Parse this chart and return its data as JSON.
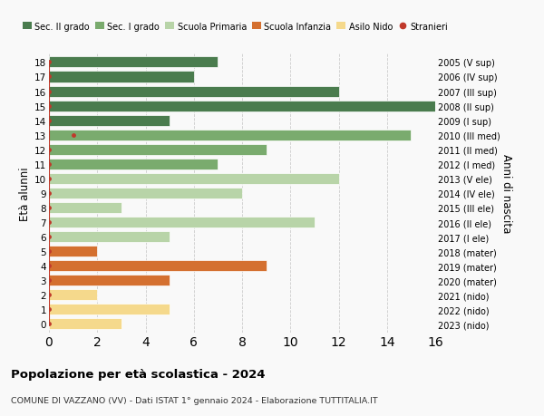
{
  "ages": [
    18,
    17,
    16,
    15,
    14,
    13,
    12,
    11,
    10,
    9,
    8,
    7,
    6,
    5,
    4,
    3,
    2,
    1,
    0
  ],
  "years": [
    "2005 (V sup)",
    "2006 (IV sup)",
    "2007 (III sup)",
    "2008 (II sup)",
    "2009 (I sup)",
    "2010 (III med)",
    "2011 (II med)",
    "2012 (I med)",
    "2013 (V ele)",
    "2014 (IV ele)",
    "2015 (III ele)",
    "2016 (II ele)",
    "2017 (I ele)",
    "2018 (mater)",
    "2019 (mater)",
    "2020 (mater)",
    "2021 (nido)",
    "2022 (nido)",
    "2023 (nido)"
  ],
  "values": [
    7,
    6,
    12,
    16,
    5,
    15,
    9,
    7,
    12,
    8,
    3,
    11,
    5,
    2,
    9,
    5,
    2,
    5,
    3
  ],
  "colors": [
    "#4a7c4e",
    "#4a7c4e",
    "#4a7c4e",
    "#4a7c4e",
    "#4a7c4e",
    "#7aab6e",
    "#7aab6e",
    "#7aab6e",
    "#b8d4a8",
    "#b8d4a8",
    "#b8d4a8",
    "#b8d4a8",
    "#b8d4a8",
    "#d47030",
    "#d47030",
    "#d47030",
    "#f5d98c",
    "#f5d98c",
    "#f5d98c"
  ],
  "stranieri_ages": [
    18,
    17,
    16,
    15,
    14,
    13,
    12,
    11,
    10,
    9,
    8,
    7,
    6,
    5,
    4,
    3,
    2,
    1,
    0
  ],
  "stranieri_values": [
    0,
    0,
    0,
    0,
    0,
    1,
    0,
    0,
    0,
    0,
    0,
    0,
    0,
    0,
    0,
    0,
    0,
    0,
    0
  ],
  "legend_labels": [
    "Sec. II grado",
    "Sec. I grado",
    "Scuola Primaria",
    "Scuola Infanzia",
    "Asilo Nido",
    "Stranieri"
  ],
  "legend_colors": [
    "#4a7c4e",
    "#7aab6e",
    "#b8d4a8",
    "#d47030",
    "#f5d98c",
    "#c0392b"
  ],
  "title": "Popolazione per età scolastica - 2024",
  "subtitle": "COMUNE DI VAZZANO (VV) - Dati ISTAT 1° gennaio 2024 - Elaborazione TUTTITALIA.IT",
  "ylabel_left": "Età alunni",
  "ylabel_right": "Anni di nascita",
  "xlim": [
    0,
    16
  ],
  "xticks": [
    0,
    2,
    4,
    6,
    8,
    10,
    12,
    14,
    16
  ],
  "bar_height": 0.75,
  "bg_color": "#f9f9f9",
  "grid_color": "#cccccc",
  "stranieri_color": "#c0392b"
}
